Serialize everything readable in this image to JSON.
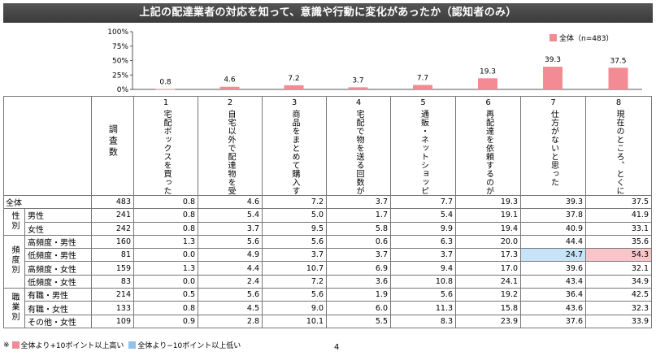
{
  "title": "上記の配達業者の対応を知って、意識や行動に変化があったか（認知者のみ）",
  "legend_label": "全体（n=483）",
  "chart_data": {
    "type": "bar",
    "categories": [
      "1",
      "2",
      "3",
      "4",
      "5",
      "6",
      "7",
      "8"
    ],
    "series": [
      {
        "name": "全体（n=483）",
        "values": [
          0.8,
          4.6,
          7.2,
          3.7,
          7.7,
          19.3,
          39.3,
          37.5
        ]
      }
    ],
    "yticks": [
      "100%",
      "75%",
      "50%",
      "25%",
      "0%"
    ],
    "ylim": [
      0,
      100
    ],
    "color": "#f28b93"
  },
  "table": {
    "n_header": "調査数",
    "questions": [
      {
        "num": "1",
        "text": "宅配ボックスを買った"
      },
      {
        "num": "2",
        "text": "自宅以外で配達物を受け取ることが増えた"
      },
      {
        "num": "3",
        "text": "商品をまとめて購入するようになった"
      },
      {
        "num": "4",
        "text": "宅配で物を送る回数が減った"
      },
      {
        "num": "5",
        "text": "通販・ネットショッピングをするのが後ろめたく感じるようになった"
      },
      {
        "num": "6",
        "text": "再配達を依頼するのが後ろめたく感じるようになった"
      },
      {
        "num": "7",
        "text": "仕方がないと思った"
      },
      {
        "num": "8",
        "text": "現在のところ、とくに何も変わらない"
      }
    ],
    "rows": [
      {
        "group": "",
        "label": "全体",
        "n": "483",
        "values": [
          "0.8",
          "4.6",
          "7.2",
          "3.7",
          "7.7",
          "19.3",
          "39.3",
          "37.5"
        ],
        "hl": [
          "",
          "",
          "",
          "",
          "",
          "",
          "",
          ""
        ]
      },
      {
        "group": "性別",
        "label": "男性",
        "n": "241",
        "values": [
          "0.8",
          "5.4",
          "5.0",
          "1.7",
          "5.4",
          "19.1",
          "37.8",
          "41.9"
        ],
        "hl": [
          "",
          "",
          "",
          "",
          "",
          "",
          "",
          ""
        ]
      },
      {
        "group": "",
        "label": "女性",
        "n": "242",
        "values": [
          "0.8",
          "3.7",
          "9.5",
          "5.8",
          "9.9",
          "19.4",
          "40.9",
          "33.1"
        ],
        "hl": [
          "",
          "",
          "",
          "",
          "",
          "",
          "",
          ""
        ]
      },
      {
        "group": "頻度別",
        "label": "高頻度・男性",
        "n": "160",
        "values": [
          "1.3",
          "5.6",
          "5.6",
          "0.6",
          "6.3",
          "20.0",
          "44.4",
          "35.6"
        ],
        "hl": [
          "",
          "",
          "",
          "",
          "",
          "",
          "",
          ""
        ]
      },
      {
        "group": "",
        "label": "低頻度・男性",
        "n": "81",
        "values": [
          "0.0",
          "4.9",
          "3.7",
          "3.7",
          "3.7",
          "17.3",
          "24.7",
          "54.3"
        ],
        "hl": [
          "",
          "",
          "",
          "",
          "",
          "",
          "lo",
          "hi"
        ]
      },
      {
        "group": "",
        "label": "高頻度・女性",
        "n": "159",
        "values": [
          "1.3",
          "4.4",
          "10.7",
          "6.9",
          "9.4",
          "17.0",
          "39.6",
          "32.1"
        ],
        "hl": [
          "",
          "",
          "",
          "",
          "",
          "",
          "",
          ""
        ]
      },
      {
        "group": "",
        "label": "低頻度・女性",
        "n": "83",
        "values": [
          "0.0",
          "2.4",
          "7.2",
          "3.6",
          "10.8",
          "24.1",
          "43.4",
          "34.9"
        ],
        "hl": [
          "",
          "",
          "",
          "",
          "",
          "",
          "",
          ""
        ]
      },
      {
        "group": "職業別",
        "label": "有職・男性",
        "n": "214",
        "values": [
          "0.5",
          "5.6",
          "5.6",
          "1.9",
          "5.6",
          "19.2",
          "36.4",
          "42.5"
        ],
        "hl": [
          "",
          "",
          "",
          "",
          "",
          "",
          "",
          ""
        ]
      },
      {
        "group": "",
        "label": "有職・女性",
        "n": "133",
        "values": [
          "0.8",
          "4.5",
          "9.0",
          "6.0",
          "11.3",
          "15.8",
          "43.6",
          "32.3"
        ],
        "hl": [
          "",
          "",
          "",
          "",
          "",
          "",
          "",
          ""
        ]
      },
      {
        "group": "",
        "label": "その他・女性",
        "n": "109",
        "values": [
          "0.9",
          "2.8",
          "10.1",
          "5.5",
          "8.3",
          "23.9",
          "37.6",
          "33.9"
        ],
        "hl": [
          "",
          "",
          "",
          "",
          "",
          "",
          "",
          ""
        ]
      }
    ]
  },
  "footnote": {
    "prefix": "※",
    "high": "全体より+10ポイント以上高い",
    "low": "全体より−10ポイント以上低い"
  },
  "page_number": "4"
}
